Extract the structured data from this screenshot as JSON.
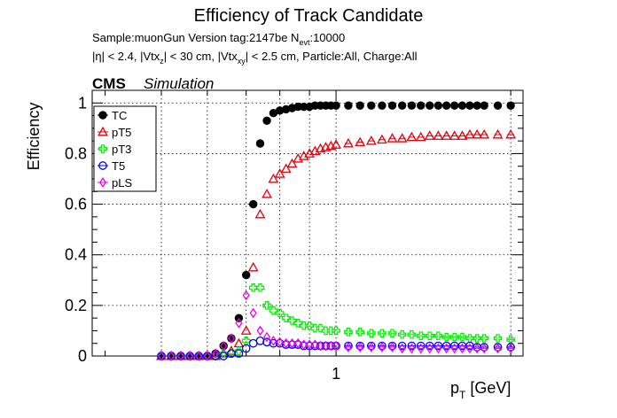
{
  "chart_data": {
    "type": "scatter",
    "title": "Efficiency of Track Candidate",
    "subtitle": {
      "sample": "Sample:muonGun   Version tag:2147be  N",
      "sample_sub": "evt",
      "sample_end": ":10000",
      "cuts": [
        {
          "t": "|η| < 2.4, |Vtx",
          "s": ""
        },
        {
          "t": "z",
          "s": "sub"
        },
        {
          "t": "| < 30 cm, |Vtx",
          "s": ""
        },
        {
          "t": "xy",
          "s": "sub"
        },
        {
          "t": "| < 2.5 cm, Particle:All, Charge:All",
          "s": ""
        }
      ]
    },
    "cms_label": "CMS",
    "sim_label": "Simulation",
    "xlabel_main": "p",
    "xlabel_sub": "T",
    "xlabel_unit": " [GeV]",
    "ylabel": "Efficiency",
    "x_scale": "log",
    "xlim": [
      0.38,
      2.1
    ],
    "ylim": [
      0,
      1.05
    ],
    "y_ticks": [
      0,
      0.2,
      0.4,
      0.6,
      0.8,
      1
    ],
    "y_tick_labels": [
      "0",
      "0.2",
      "0.4",
      "0.6",
      "0.8",
      "1"
    ],
    "x_tick_labels": [
      {
        "value": 1,
        "label": "1"
      }
    ],
    "grid": true,
    "legend_position": "top-left",
    "series": [
      {
        "name": "TC",
        "color": "#000000",
        "marker": "filled-circle",
        "x": [
          0.5,
          0.52,
          0.54,
          0.56,
          0.58,
          0.6,
          0.62,
          0.64,
          0.66,
          0.68,
          0.7,
          0.72,
          0.74,
          0.76,
          0.78,
          0.8,
          0.82,
          0.84,
          0.86,
          0.88,
          0.9,
          0.92,
          0.94,
          0.96,
          0.98,
          1.0,
          1.05,
          1.1,
          1.15,
          1.2,
          1.25,
          1.3,
          1.35,
          1.4,
          1.45,
          1.5,
          1.55,
          1.6,
          1.65,
          1.7,
          1.75,
          1.8,
          1.9,
          2.0
        ],
        "y": [
          0,
          0,
          0,
          0,
          0,
          0,
          0.01,
          0.04,
          0.07,
          0.15,
          0.32,
          0.6,
          0.84,
          0.93,
          0.96,
          0.97,
          0.975,
          0.98,
          0.985,
          0.985,
          0.985,
          0.99,
          0.99,
          0.99,
          0.99,
          0.99,
          0.99,
          0.99,
          0.99,
          0.99,
          0.99,
          0.99,
          0.99,
          0.99,
          0.99,
          0.99,
          0.99,
          0.99,
          0.99,
          0.99,
          0.99,
          0.99,
          0.99,
          0.99
        ]
      },
      {
        "name": "pT5",
        "color": "#e8000b",
        "marker": "open-triangle",
        "x": [
          0.5,
          0.52,
          0.54,
          0.56,
          0.58,
          0.6,
          0.62,
          0.64,
          0.66,
          0.68,
          0.7,
          0.72,
          0.74,
          0.76,
          0.78,
          0.8,
          0.82,
          0.84,
          0.86,
          0.88,
          0.9,
          0.92,
          0.94,
          0.96,
          0.98,
          1.0,
          1.05,
          1.1,
          1.15,
          1.2,
          1.25,
          1.3,
          1.35,
          1.4,
          1.45,
          1.5,
          1.55,
          1.6,
          1.65,
          1.7,
          1.75,
          1.8,
          1.9,
          2.0
        ],
        "y": [
          0,
          0,
          0,
          0,
          0,
          0,
          0,
          0.01,
          0.02,
          0.05,
          0.1,
          0.35,
          0.56,
          0.64,
          0.7,
          0.72,
          0.74,
          0.76,
          0.78,
          0.79,
          0.8,
          0.81,
          0.82,
          0.825,
          0.83,
          0.835,
          0.84,
          0.845,
          0.85,
          0.855,
          0.86,
          0.86,
          0.865,
          0.865,
          0.87,
          0.87,
          0.87,
          0.87,
          0.87,
          0.875,
          0.875,
          0.875,
          0.875,
          0.875
        ]
      },
      {
        "name": "pT3",
        "color": "#00ee00",
        "marker": "open-cross",
        "x": [
          0.5,
          0.52,
          0.54,
          0.56,
          0.58,
          0.6,
          0.62,
          0.64,
          0.66,
          0.68,
          0.7,
          0.72,
          0.74,
          0.76,
          0.78,
          0.8,
          0.82,
          0.84,
          0.86,
          0.88,
          0.9,
          0.92,
          0.94,
          0.96,
          0.98,
          1.0,
          1.05,
          1.1,
          1.15,
          1.2,
          1.25,
          1.3,
          1.35,
          1.4,
          1.45,
          1.5,
          1.55,
          1.6,
          1.65,
          1.7,
          1.75,
          1.8,
          1.9,
          2.0
        ],
        "y": [
          0,
          0,
          0,
          0,
          0,
          0,
          0,
          0.01,
          0.01,
          0.02,
          0.06,
          0.27,
          0.27,
          0.2,
          0.18,
          0.17,
          0.15,
          0.14,
          0.13,
          0.12,
          0.12,
          0.11,
          0.11,
          0.1,
          0.1,
          0.1,
          0.095,
          0.095,
          0.09,
          0.09,
          0.09,
          0.085,
          0.085,
          0.08,
          0.08,
          0.08,
          0.075,
          0.075,
          0.075,
          0.07,
          0.07,
          0.07,
          0.07,
          0.065
        ]
      },
      {
        "name": "T5",
        "color": "#0000ff",
        "marker": "open-circle",
        "x": [
          0.5,
          0.52,
          0.54,
          0.56,
          0.58,
          0.6,
          0.62,
          0.64,
          0.66,
          0.68,
          0.7,
          0.72,
          0.74,
          0.76,
          0.78,
          0.8,
          0.82,
          0.84,
          0.86,
          0.88,
          0.9,
          0.92,
          0.94,
          0.96,
          0.98,
          1.0,
          1.05,
          1.1,
          1.15,
          1.2,
          1.25,
          1.3,
          1.35,
          1.4,
          1.45,
          1.5,
          1.55,
          1.6,
          1.65,
          1.7,
          1.75,
          1.8,
          1.9,
          2.0
        ],
        "y": [
          0,
          0,
          0,
          0,
          0,
          0,
          0,
          0,
          0.01,
          0.01,
          0.03,
          0.05,
          0.06,
          0.055,
          0.05,
          0.05,
          0.045,
          0.045,
          0.045,
          0.04,
          0.04,
          0.04,
          0.04,
          0.04,
          0.04,
          0.04,
          0.04,
          0.04,
          0.04,
          0.04,
          0.04,
          0.04,
          0.04,
          0.04,
          0.04,
          0.04,
          0.04,
          0.04,
          0.04,
          0.04,
          0.035,
          0.035,
          0.035,
          0.035
        ]
      },
      {
        "name": "pLS",
        "color": "#ee00ee",
        "marker": "open-diamond",
        "x": [
          0.5,
          0.52,
          0.54,
          0.56,
          0.58,
          0.6,
          0.62,
          0.64,
          0.66,
          0.68,
          0.7,
          0.72,
          0.74,
          0.76,
          0.78,
          0.8,
          0.82,
          0.84,
          0.86,
          0.88,
          0.9,
          0.92,
          0.94,
          0.96,
          0.98,
          1.0,
          1.05,
          1.1,
          1.15,
          1.2,
          1.25,
          1.3,
          1.35,
          1.4,
          1.45,
          1.5,
          1.55,
          1.6,
          1.65,
          1.7,
          1.75,
          1.8,
          1.9,
          2.0
        ],
        "y": [
          0,
          0,
          0,
          0,
          0,
          0,
          0.01,
          0.04,
          0.07,
          0.13,
          0.24,
          0.17,
          0.1,
          0.075,
          0.06,
          0.055,
          0.05,
          0.05,
          0.05,
          0.045,
          0.045,
          0.045,
          0.04,
          0.04,
          0.04,
          0.04,
          0.035,
          0.035,
          0.035,
          0.035,
          0.035,
          0.03,
          0.03,
          0.03,
          0.03,
          0.03,
          0.03,
          0.03,
          0.03,
          0.03,
          0.03,
          0.03,
          0.03,
          0.03
        ]
      }
    ]
  }
}
